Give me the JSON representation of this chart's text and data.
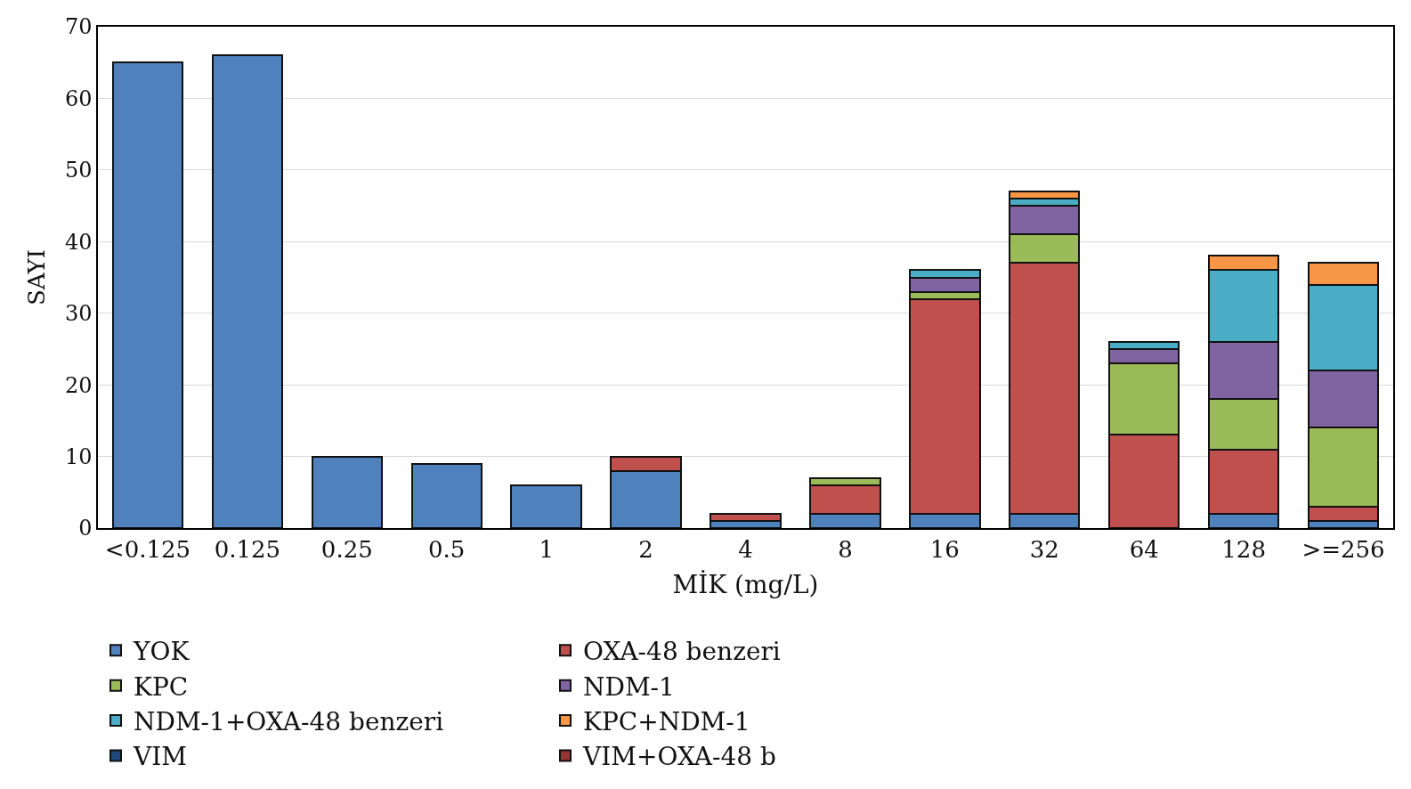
{
  "chart_data": {
    "type": "bar",
    "stacked": true,
    "xlabel": "MİK (mg/L)",
    "ylabel": "SAYI",
    "categories": [
      "<0.125",
      "0.125",
      "0.25",
      "0.5",
      "1",
      "2",
      "4",
      "8",
      "16",
      "32",
      "64",
      "128",
      ">=256"
    ],
    "series": [
      {
        "name": "YOK",
        "color": "#4f81bd",
        "values": [
          65,
          66,
          10,
          9,
          6,
          8,
          1,
          2,
          2,
          2,
          null,
          2,
          1
        ]
      },
      {
        "name": "OXA-48 benzeri",
        "color": "#c0504d",
        "values": [
          null,
          null,
          null,
          null,
          null,
          2,
          1,
          4,
          30,
          35,
          13,
          9,
          2
        ]
      },
      {
        "name": "KPC",
        "color": "#9bbb59",
        "values": [
          null,
          null,
          null,
          null,
          null,
          null,
          null,
          1,
          1,
          4,
          10,
          7,
          11
        ]
      },
      {
        "name": "NDM-1",
        "color": "#8064a2",
        "values": [
          null,
          null,
          null,
          null,
          null,
          null,
          null,
          null,
          2,
          4,
          2,
          8,
          8
        ]
      },
      {
        "name": "NDM-1+OXA-48 benzeri",
        "color": "#4bacc6",
        "values": [
          null,
          null,
          null,
          null,
          null,
          null,
          null,
          null,
          1,
          1,
          1,
          10,
          12
        ]
      },
      {
        "name": "KPC+NDM-1",
        "color": "#f79646",
        "values": [
          null,
          null,
          null,
          null,
          null,
          null,
          null,
          null,
          null,
          1,
          null,
          2,
          3
        ]
      },
      {
        "name": "VIM",
        "color": "#1f497d",
        "values": [
          null,
          null,
          null,
          null,
          null,
          null,
          null,
          null,
          null,
          null,
          null,
          null,
          null
        ]
      },
      {
        "name": "VIM+OXA-48 b",
        "color": "#943634",
        "values": [
          null,
          null,
          null,
          null,
          null,
          null,
          null,
          null,
          null,
          null,
          null,
          null,
          null
        ]
      }
    ],
    "ylim": [
      0,
      70
    ],
    "yticks": [
      0,
      10,
      20,
      30,
      40,
      50,
      60,
      70
    ],
    "grid": "y",
    "legend": "bottom"
  }
}
